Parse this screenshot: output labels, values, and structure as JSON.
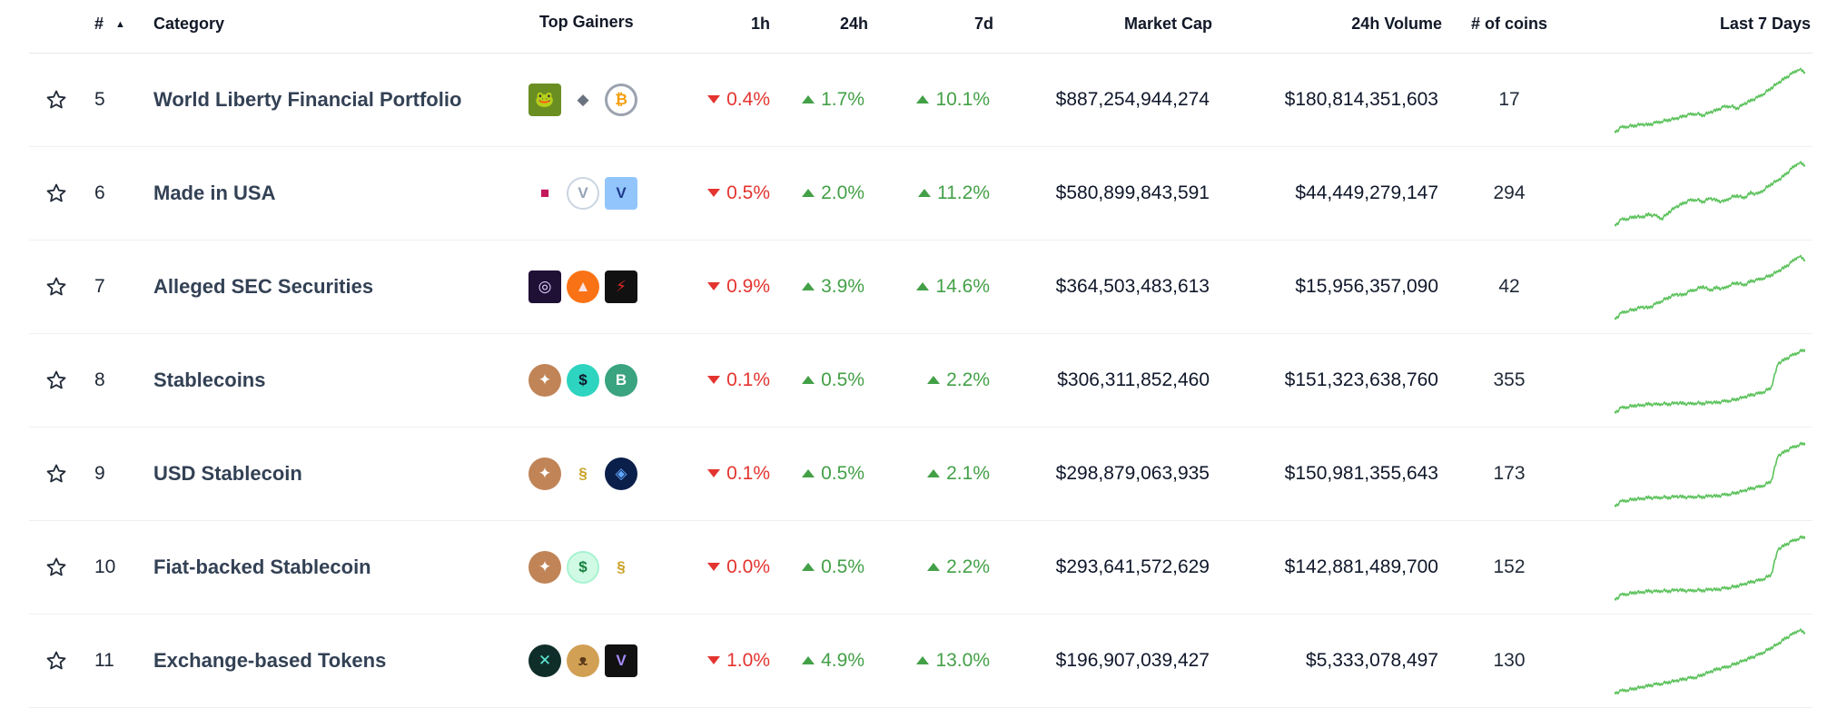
{
  "columns": {
    "rank": "#",
    "category": "Category",
    "top_gainers": "Top Gainers",
    "h1": "1h",
    "h24": "24h",
    "d7": "7d",
    "market_cap": "Market Cap",
    "volume": "24h Volume",
    "coins": "# of coins",
    "last7": "Last 7 Days"
  },
  "sort_indicator": "▲",
  "colors": {
    "up": "#43a047",
    "down": "#e3342f",
    "sparkline": "#5cc25c"
  },
  "rows": [
    {
      "rank": "5",
      "name": "World Liberty Financial Portfolio",
      "h1": "0.4%",
      "h1_dir": "down",
      "h24": "1.7%",
      "h24_dir": "up",
      "d7": "10.1%",
      "d7_dir": "up",
      "market_cap": "$887,254,944,274",
      "volume": "$180,814,351,603",
      "coins": "17",
      "gainer_icons": [
        "pepe-frog-icon",
        "ethereum-icon",
        "bitcoin-icon"
      ],
      "spark": [
        0,
        8,
        10,
        11,
        13,
        12,
        15,
        18,
        20,
        22,
        25,
        28,
        30,
        27,
        32,
        35,
        40,
        42,
        38,
        45,
        50,
        55,
        62,
        70,
        78,
        85,
        92,
        100,
        95
      ]
    },
    {
      "rank": "6",
      "name": "Made in USA",
      "h1": "0.5%",
      "h1_dir": "down",
      "h24": "2.0%",
      "h24_dir": "up",
      "d7": "11.2%",
      "d7_dir": "up",
      "market_cap": "$580,899,843,591",
      "volume": "$44,449,279,147",
      "coins": "294",
      "gainer_icons": [
        "red-cube-icon",
        "shield-v-icon",
        "blue-v-icon"
      ],
      "spark": [
        0,
        10,
        12,
        15,
        14,
        18,
        16,
        12,
        22,
        30,
        35,
        40,
        42,
        38,
        44,
        40,
        38,
        45,
        48,
        44,
        52,
        50,
        58,
        66,
        72,
        80,
        90,
        100,
        96
      ]
    },
    {
      "rank": "7",
      "name": "Alleged SEC Securities",
      "h1": "0.9%",
      "h1_dir": "down",
      "h24": "3.9%",
      "h24_dir": "up",
      "d7": "14.6%",
      "d7_dir": "up",
      "market_cap": "$364,503,483,613",
      "volume": "$15,956,357,090",
      "coins": "42",
      "gainer_icons": [
        "ring-icon",
        "pink-circle-icon",
        "lightning-icon"
      ],
      "spark": [
        0,
        10,
        14,
        16,
        20,
        18,
        24,
        30,
        35,
        40,
        38,
        44,
        48,
        52,
        46,
        50,
        48,
        55,
        58,
        54,
        60,
        62,
        66,
        70,
        76,
        82,
        90,
        100,
        94
      ]
    },
    {
      "rank": "8",
      "name": "Stablecoins",
      "h1": "0.1%",
      "h1_dir": "down",
      "h24": "0.5%",
      "h24_dir": "up",
      "d7": "2.2%",
      "d7_dir": "up",
      "market_cap": "$306,311,852,460",
      "volume": "$151,323,638,760",
      "coins": "355",
      "gainer_icons": [
        "bronze-coin-icon",
        "dollar-shield-icon",
        "green-b-icon"
      ],
      "spark": [
        0,
        8,
        10,
        12,
        12,
        14,
        13,
        15,
        14,
        16,
        15,
        14,
        16,
        15,
        17,
        16,
        18,
        20,
        22,
        25,
        28,
        30,
        34,
        40,
        78,
        84,
        90,
        96,
        100
      ]
    },
    {
      "rank": "9",
      "name": "USD Stablecoin",
      "h1": "0.1%",
      "h1_dir": "down",
      "h24": "0.5%",
      "h24_dir": "up",
      "d7": "2.1%",
      "d7_dir": "up",
      "market_cap": "$298,879,063,935",
      "volume": "$150,981,355,643",
      "coins": "173",
      "gainer_icons": [
        "bronze-coin-icon",
        "gold-swirl-icon",
        "blue-cube-icon"
      ],
      "spark": [
        0,
        8,
        10,
        12,
        12,
        14,
        13,
        15,
        14,
        16,
        15,
        14,
        16,
        15,
        17,
        16,
        18,
        20,
        22,
        25,
        28,
        30,
        34,
        40,
        80,
        86,
        92,
        97,
        100
      ]
    },
    {
      "rank": "10",
      "name": "Fiat-backed Stablecoin",
      "h1": "0.0%",
      "h1_dir": "down",
      "h24": "0.5%",
      "h24_dir": "up",
      "d7": "2.2%",
      "d7_dir": "up",
      "market_cap": "$293,641,572,629",
      "volume": "$142,881,489,700",
      "coins": "152",
      "gainer_icons": [
        "bronze-coin-icon",
        "green-dollar-icon",
        "gold-swirl-icon"
      ],
      "spark": [
        0,
        8,
        10,
        12,
        12,
        14,
        13,
        15,
        14,
        16,
        15,
        14,
        16,
        15,
        17,
        16,
        18,
        20,
        22,
        25,
        28,
        30,
        34,
        40,
        80,
        86,
        92,
        97,
        100
      ]
    },
    {
      "rank": "11",
      "name": "Exchange-based Tokens",
      "h1": "1.0%",
      "h1_dir": "down",
      "h24": "4.9%",
      "h24_dir": "up",
      "d7": "13.0%",
      "d7_dir": "up",
      "market_cap": "$196,907,039,427",
      "volume": "$5,333,078,497",
      "coins": "130",
      "gainer_icons": [
        "x-coin-icon",
        "pancake-bunny-icon",
        "purple-v-icon"
      ],
      "spark": [
        0,
        4,
        6,
        8,
        10,
        12,
        14,
        16,
        18,
        20,
        22,
        24,
        26,
        30,
        34,
        38,
        40,
        44,
        48,
        52,
        56,
        60,
        66,
        72,
        78,
        86,
        92,
        100,
        96
      ]
    }
  ]
}
